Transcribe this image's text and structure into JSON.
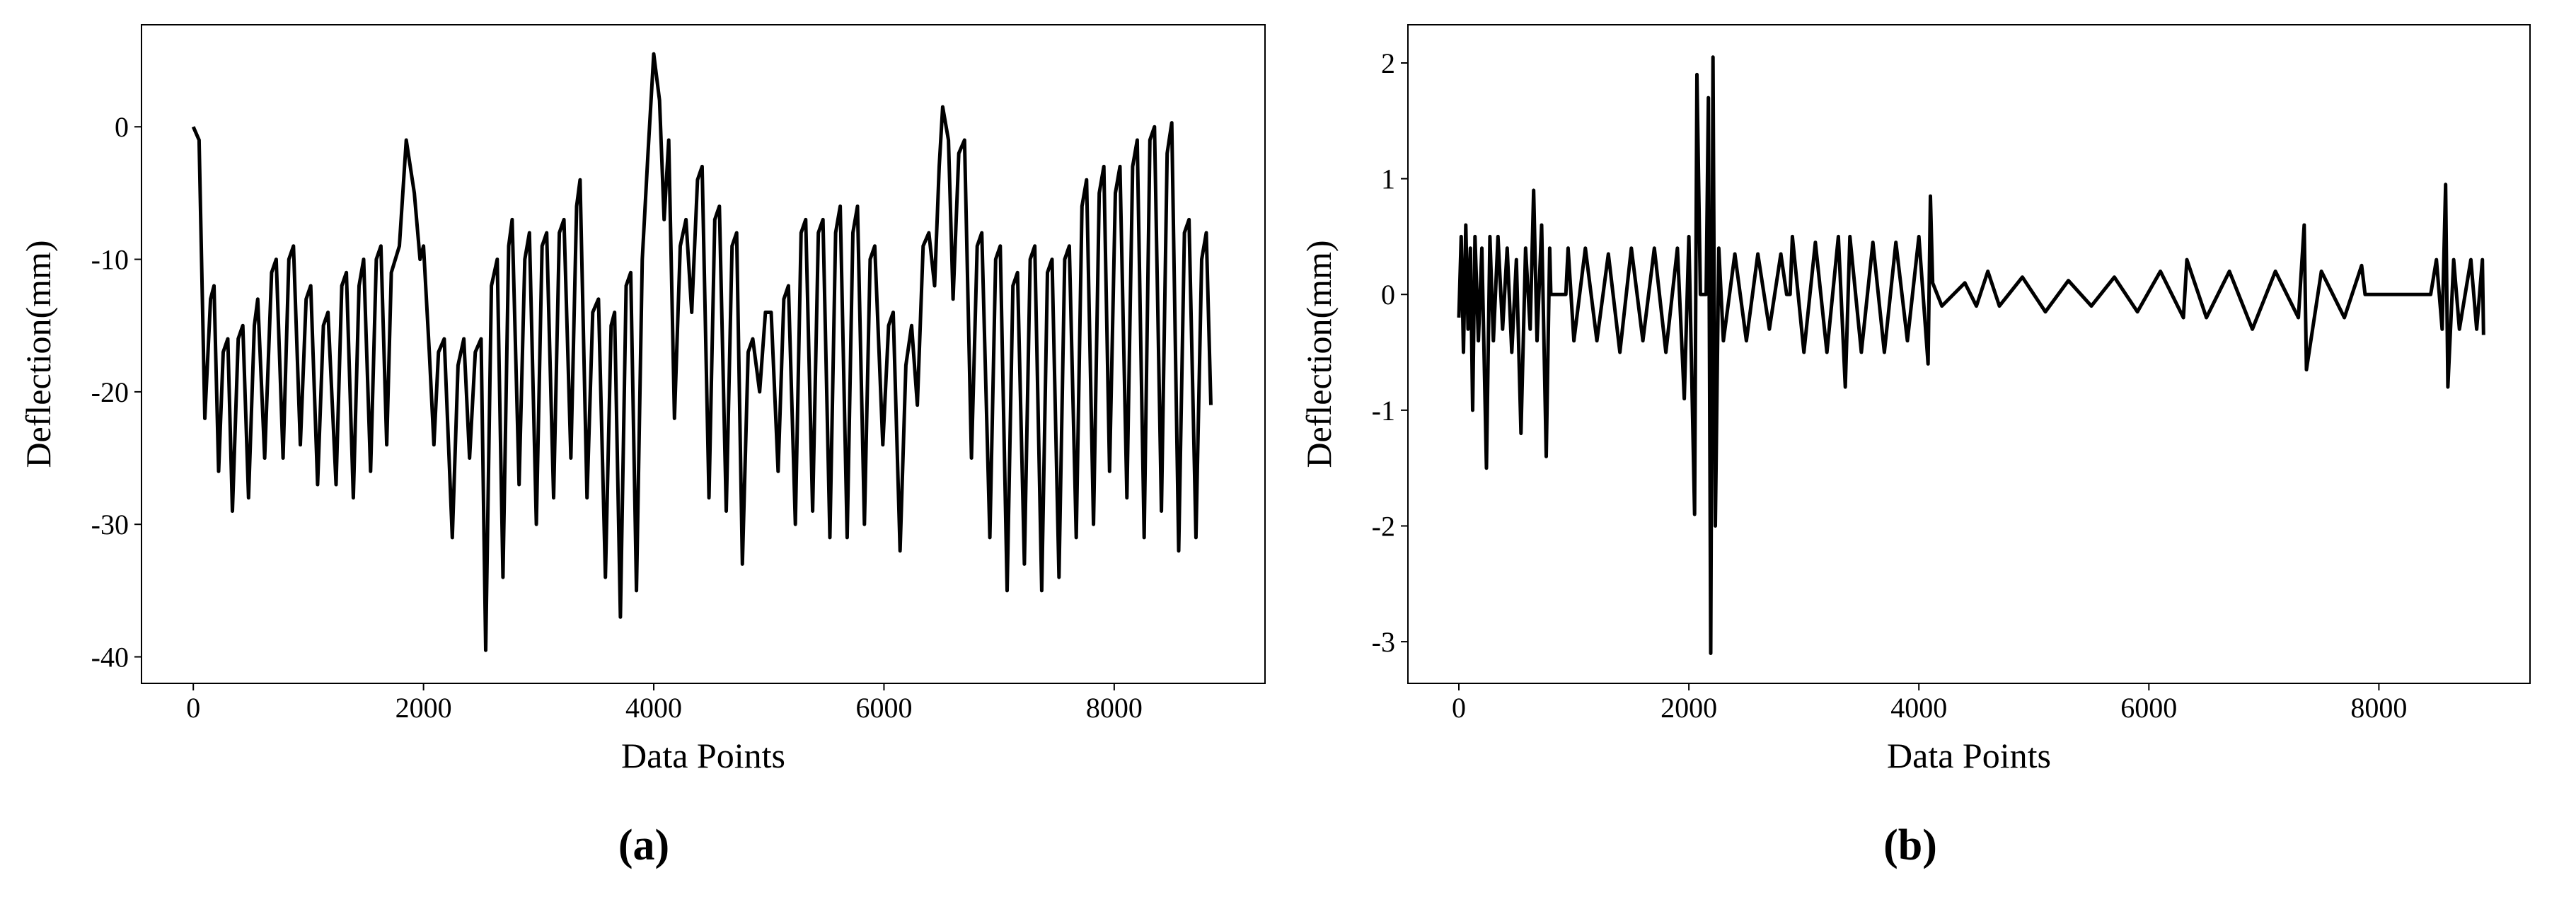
{
  "chart_data": [
    {
      "type": "line",
      "caption": "(a)",
      "x_label": "Data Points",
      "y_label": "Deflection(mm)",
      "color": "#000000",
      "xlim": [
        -450,
        9310
      ],
      "ylim": [
        -42,
        7.7
      ],
      "xticks": [
        0,
        2000,
        4000,
        6000,
        8000
      ],
      "yticks": [
        -40,
        -30,
        -20,
        -10,
        0
      ],
      "x": [
        0,
        50,
        100,
        150,
        180,
        220,
        260,
        300,
        340,
        390,
        430,
        480,
        530,
        560,
        620,
        680,
        720,
        780,
        830,
        870,
        930,
        980,
        1020,
        1080,
        1130,
        1170,
        1240,
        1290,
        1330,
        1390,
        1440,
        1480,
        1540,
        1590,
        1630,
        1680,
        1720,
        1790,
        1850,
        1920,
        1970,
        2000,
        2050,
        2090,
        2130,
        2180,
        2250,
        2300,
        2350,
        2400,
        2450,
        2500,
        2540,
        2590,
        2640,
        2690,
        2740,
        2770,
        2830,
        2880,
        2920,
        2980,
        3030,
        3070,
        3130,
        3180,
        3220,
        3280,
        3330,
        3360,
        3420,
        3470,
        3520,
        3580,
        3630,
        3660,
        3710,
        3760,
        3800,
        3850,
        3900,
        3950,
        4000,
        4050,
        4090,
        4130,
        4180,
        4230,
        4280,
        4330,
        4380,
        4420,
        4480,
        4530,
        4570,
        4630,
        4680,
        4720,
        4770,
        4820,
        4860,
        4920,
        4970,
        5020,
        5080,
        5130,
        5170,
        5230,
        5280,
        5320,
        5380,
        5430,
        5470,
        5530,
        5580,
        5620,
        5680,
        5730,
        5770,
        5830,
        5880,
        5920,
        5990,
        6040,
        6080,
        6140,
        6190,
        6240,
        6290,
        6340,
        6390,
        6440,
        6480,
        6510,
        6560,
        6600,
        6650,
        6700,
        6760,
        6810,
        6850,
        6920,
        6970,
        7010,
        7070,
        7120,
        7160,
        7220,
        7270,
        7310,
        7370,
        7420,
        7460,
        7520,
        7570,
        7610,
        7670,
        7720,
        7760,
        7820,
        7870,
        7910,
        7960,
        8010,
        8050,
        8110,
        8160,
        8200,
        8260,
        8310,
        8350,
        8410,
        8460,
        8500,
        8560,
        8610,
        8650,
        8710,
        8760,
        8800,
        8840
      ],
      "values": [
        0,
        -1,
        -22,
        -13,
        -12,
        -26,
        -17,
        -16,
        -29,
        -16,
        -15,
        -28,
        -15,
        -13,
        -25,
        -11,
        -10,
        -25,
        -10,
        -9,
        -24,
        -13,
        -12,
        -27,
        -15,
        -14,
        -27,
        -12,
        -11,
        -28,
        -12,
        -10,
        -26,
        -10,
        -9,
        -24,
        -11,
        -9,
        -1,
        -5,
        -10,
        -9,
        -17,
        -24,
        -17,
        -16,
        -31,
        -18,
        -16,
        -25,
        -17,
        -16,
        -39.5,
        -12,
        -10,
        -34,
        -9,
        -7,
        -27,
        -10,
        -8,
        -30,
        -9,
        -8,
        -28,
        -8,
        -7,
        -25,
        -6,
        -4,
        -28,
        -14,
        -13,
        -34,
        -15,
        -14,
        -37,
        -12,
        -11,
        -35,
        -10,
        -2,
        5.5,
        2,
        -7,
        -1,
        -22,
        -9,
        -7,
        -14,
        -4,
        -3,
        -28,
        -7,
        -6,
        -29,
        -9,
        -8,
        -33,
        -17,
        -16,
        -20,
        -14,
        -14,
        -26,
        -13,
        -12,
        -30,
        -8,
        -7,
        -29,
        -8,
        -7,
        -31,
        -8,
        -6,
        -31,
        -8,
        -6,
        -30,
        -10,
        -9,
        -24,
        -15,
        -14,
        -32,
        -18,
        -15,
        -21,
        -9,
        -8,
        -12,
        -3,
        1.5,
        -1,
        -13,
        -2,
        -1,
        -25,
        -9,
        -8,
        -31,
        -10,
        -9,
        -35,
        -12,
        -11,
        -33,
        -10,
        -9,
        -35,
        -11,
        -10,
        -34,
        -10,
        -9,
        -31,
        -6,
        -4,
        -30,
        -5,
        -3,
        -26,
        -5,
        -3,
        -28,
        -3,
        -1,
        -31,
        -1,
        0,
        -29,
        -2,
        0.3,
        -32,
        -8,
        -7,
        -31,
        -10,
        -8,
        -21
      ]
    },
    {
      "type": "line",
      "caption": "(b)",
      "x_label": "Data Points",
      "y_label": "Deflection(mm)",
      "color": "#000000",
      "xlim": [
        -443,
        9314
      ],
      "ylim": [
        -3.36,
        2.33
      ],
      "xticks": [
        0,
        2000,
        4000,
        6000,
        8000
      ],
      "yticks": [
        -3,
        -2,
        -1,
        0,
        1,
        2
      ],
      "x": [
        0,
        20,
        40,
        60,
        80,
        100,
        120,
        140,
        170,
        200,
        240,
        270,
        300,
        340,
        380,
        420,
        460,
        500,
        540,
        580,
        620,
        650,
        680,
        720,
        760,
        790,
        800,
        930,
        950,
        1000,
        1100,
        1200,
        1300,
        1400,
        1500,
        1600,
        1700,
        1800,
        1900,
        1960,
        2000,
        2050,
        2070,
        2100,
        2150,
        2170,
        2190,
        2210,
        2230,
        2260,
        2300,
        2400,
        2500,
        2600,
        2700,
        2800,
        2850,
        2880,
        2900,
        3000,
        3100,
        3200,
        3300,
        3360,
        3400,
        3500,
        3600,
        3700,
        3800,
        3900,
        4000,
        4080,
        4100,
        4120,
        4200,
        4400,
        4500,
        4600,
        4700,
        4900,
        5100,
        5300,
        5500,
        5700,
        5900,
        6100,
        6300,
        6330,
        6500,
        6700,
        6900,
        7100,
        7300,
        7350,
        7370,
        7500,
        7700,
        7850,
        7880,
        8450,
        8500,
        8550,
        8580,
        8600,
        8650,
        8700,
        8800,
        8850,
        8900,
        8910
      ],
      "values": [
        -0.2,
        0.5,
        -0.5,
        0.6,
        -0.3,
        0.4,
        -1.0,
        0.5,
        -0.4,
        0.4,
        -1.5,
        0.5,
        -0.4,
        0.5,
        -0.3,
        0.4,
        -0.5,
        0.3,
        -1.2,
        0.4,
        -0.3,
        0.9,
        -0.4,
        0.6,
        -1.4,
        0.4,
        0,
        0,
        0.4,
        -0.4,
        0.4,
        -0.4,
        0.35,
        -0.5,
        0.4,
        -0.4,
        0.4,
        -0.5,
        0.4,
        -0.9,
        0.5,
        -1.9,
        1.9,
        0,
        0,
        1.7,
        -3.1,
        2.05,
        -2.0,
        0.4,
        -0.4,
        0.35,
        -0.4,
        0.35,
        -0.3,
        0.35,
        0,
        0,
        0.5,
        -0.5,
        0.45,
        -0.5,
        0.5,
        -0.8,
        0.5,
        -0.5,
        0.45,
        -0.5,
        0.45,
        -0.4,
        0.5,
        -0.6,
        0.85,
        0.1,
        -0.1,
        0.1,
        -0.1,
        0.2,
        -0.1,
        0.15,
        -0.15,
        0.12,
        -0.1,
        0.15,
        -0.15,
        0.2,
        -0.2,
        0.3,
        -0.2,
        0.2,
        -0.3,
        0.2,
        -0.2,
        0.6,
        -0.65,
        0.2,
        -0.2,
        0.25,
        0,
        0,
        0.3,
        -0.3,
        0.95,
        -0.8,
        0.3,
        -0.3,
        0.3,
        -0.3,
        0.3,
        -0.35
      ]
    }
  ]
}
